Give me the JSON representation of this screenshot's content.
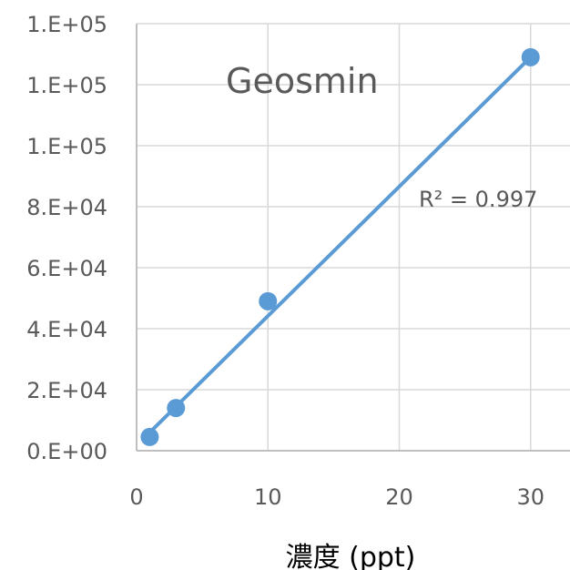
{
  "chart_data": {
    "type": "scatter",
    "title": "Geosmin",
    "xlabel": "濃度 (ppt)",
    "ylabel": "",
    "xlim": [
      0,
      33
    ],
    "ylim": [
      0,
      140000
    ],
    "xticks": [
      0,
      10,
      20,
      30
    ],
    "xtick_labels": [
      "0",
      "10",
      "20",
      "30"
    ],
    "yticks": [
      0,
      20000,
      40000,
      60000,
      80000,
      100000,
      120000,
      140000
    ],
    "ytick_labels": [
      "0.E+00",
      "2.E+04",
      "4.E+04",
      "6.E+04",
      "8.E+04",
      "1.E+05",
      "1.E+05",
      "1.E+05"
    ],
    "grid": true,
    "series": [
      {
        "x": [
          1,
          3,
          10,
          30
        ],
        "y": [
          4500,
          14000,
          49000,
          129000
        ]
      }
    ],
    "trendline": {
      "type": "linear",
      "x": [
        1,
        30
      ],
      "y": [
        6000,
        129000
      ],
      "annotation": "R² = 0.997"
    },
    "colors": {
      "series": "#5b9bd5",
      "grid": "#d9d9d9",
      "axis": "#bfbfbf"
    }
  }
}
